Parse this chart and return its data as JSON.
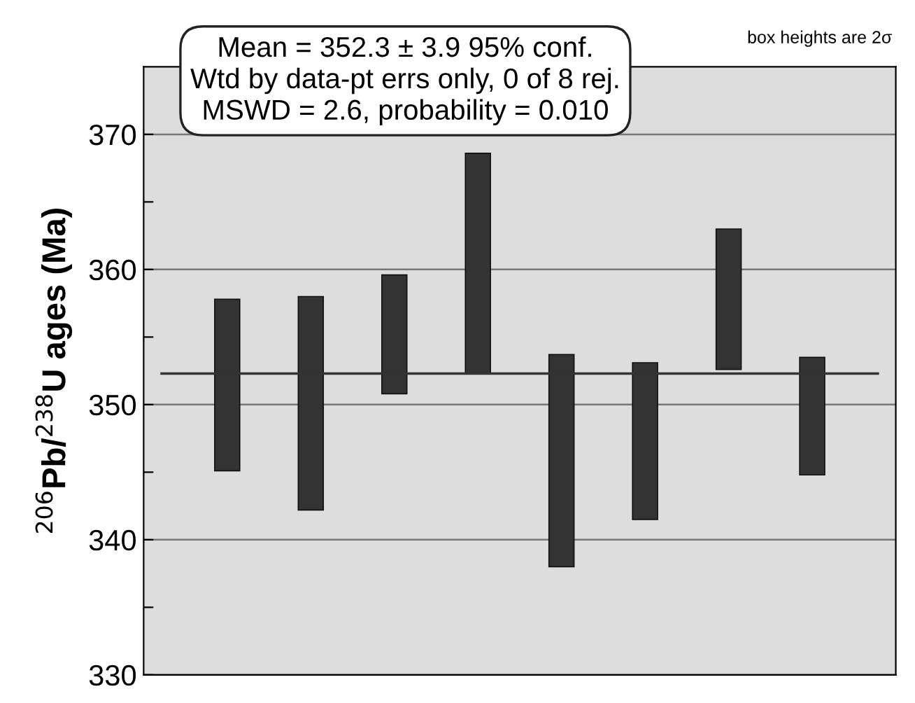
{
  "chart_data": {
    "type": "bar",
    "ylabel": "$^{206}$Pb/$^{238}$U ages (Ma)",
    "categories": [
      null,
      null,
      null,
      null,
      null,
      null,
      null,
      null
    ],
    "base": [
      345.1,
      342.2,
      350.8,
      352.3,
      338.0,
      341.5,
      352.6,
      344.8
    ],
    "values": [
      12.7,
      15.8,
      8.8,
      16.3,
      15.7,
      11.6,
      10.4,
      8.7
    ],
    "color": "#333333",
    "ylim": [
      330,
      375
    ],
    "yticks": [
      330,
      {
        "value": 335,
        "label": null
      },
      340,
      {
        "value": 345,
        "label": null
      },
      350,
      {
        "value": 355,
        "label": null
      },
      360,
      {
        "value": 365,
        "label": null
      },
      370
    ],
    "grid": "y",
    "ref_lines": [
      {
        "axis": "y",
        "value": 352.3,
        "label": null,
        "color": "#333333"
      }
    ],
    "annotations": [
      "Mean = 352.3 ± 3.9 95% conf.",
      "Wtd by data-pt errs only, 0 of 8 rej.",
      "MSWD = 2.6, probability = 0.010",
      "box heights are 2σ"
    ]
  }
}
